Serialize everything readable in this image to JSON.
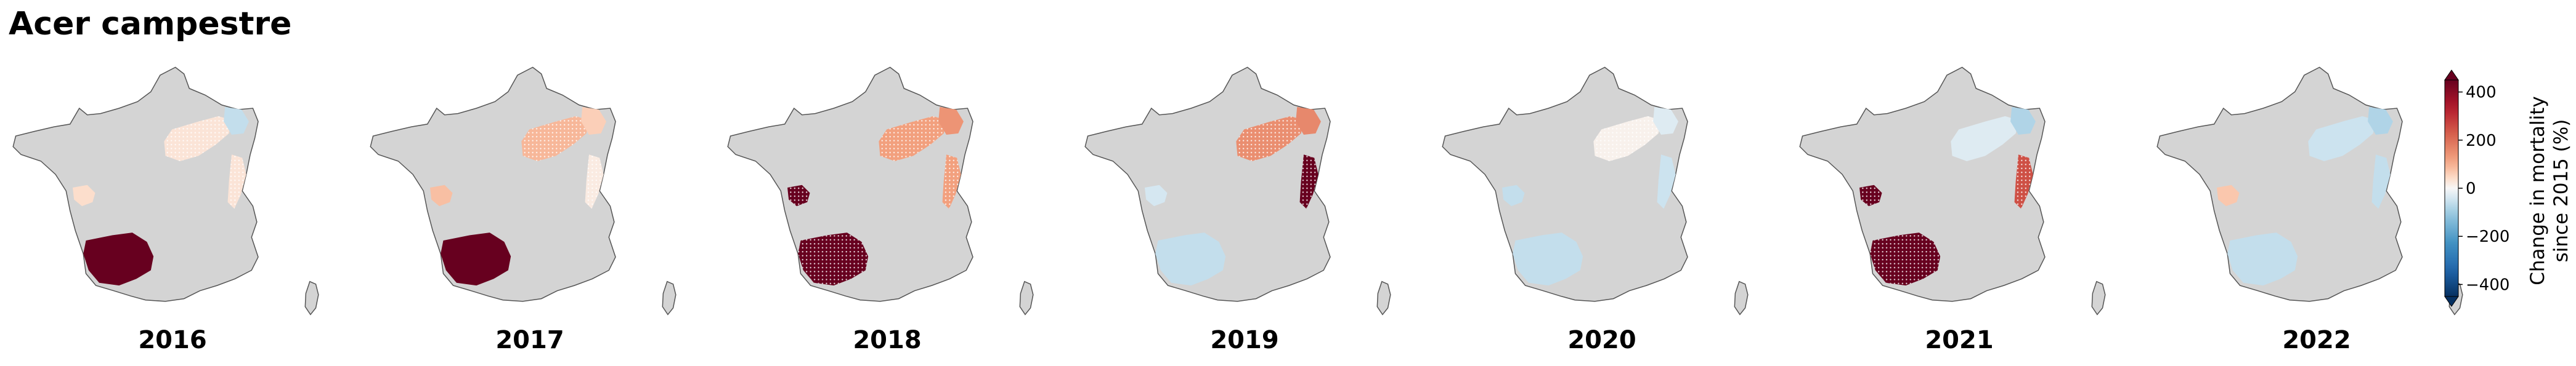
{
  "title": "Acer campestre",
  "map_style": {
    "land": "#d4d4d4",
    "outline": "#555555",
    "hatch": "#ffffff"
  },
  "panels": [
    {
      "year": "2016",
      "regions": [
        {
          "area": "southwest-landes",
          "change": 460,
          "hatch": false
        },
        {
          "area": "charente-coast",
          "change": 40,
          "hatch": false
        },
        {
          "area": "northeast-plateau",
          "change": 30,
          "hatch": true
        },
        {
          "area": "lorraine",
          "change": -60,
          "hatch": false
        },
        {
          "area": "alps-jura",
          "change": 30,
          "hatch": true
        },
        {
          "area": "central-band",
          "change": 0,
          "hatch": false
        }
      ]
    },
    {
      "year": "2017",
      "regions": [
        {
          "area": "southwest-landes",
          "change": 460,
          "hatch": false
        },
        {
          "area": "charente-coast",
          "change": 80,
          "hatch": false
        },
        {
          "area": "northeast-plateau",
          "change": 90,
          "hatch": true
        },
        {
          "area": "lorraine",
          "change": 60,
          "hatch": false
        },
        {
          "area": "alps-jura",
          "change": 20,
          "hatch": true
        },
        {
          "area": "central-band",
          "change": 0,
          "hatch": false
        }
      ]
    },
    {
      "year": "2018",
      "regions": [
        {
          "area": "southwest-landes",
          "change": 460,
          "hatch": true
        },
        {
          "area": "charente-coast",
          "change": 460,
          "hatch": true
        },
        {
          "area": "northeast-plateau",
          "change": 120,
          "hatch": true
        },
        {
          "area": "lorraine",
          "change": 140,
          "hatch": false
        },
        {
          "area": "alps-jura",
          "change": 120,
          "hatch": true
        },
        {
          "area": "central-band",
          "change": 0,
          "hatch": false
        }
      ]
    },
    {
      "year": "2019",
      "regions": [
        {
          "area": "southwest-landes",
          "change": -60,
          "hatch": false
        },
        {
          "area": "charente-coast",
          "change": -40,
          "hatch": false
        },
        {
          "area": "northeast-plateau",
          "change": 150,
          "hatch": true
        },
        {
          "area": "lorraine",
          "change": 160,
          "hatch": false
        },
        {
          "area": "alps-jura",
          "change": 460,
          "hatch": true
        },
        {
          "area": "central-band",
          "change": 0,
          "hatch": false
        }
      ]
    },
    {
      "year": "2020",
      "regions": [
        {
          "area": "southwest-landes",
          "change": -60,
          "hatch": false
        },
        {
          "area": "charente-coast",
          "change": -60,
          "hatch": false
        },
        {
          "area": "northeast-plateau",
          "change": 10,
          "hatch": true
        },
        {
          "area": "lorraine",
          "change": -30,
          "hatch": false
        },
        {
          "area": "alps-jura",
          "change": -50,
          "hatch": false
        },
        {
          "area": "central-band",
          "change": 0,
          "hatch": false
        }
      ]
    },
    {
      "year": "2021",
      "regions": [
        {
          "area": "southwest-landes",
          "change": 460,
          "hatch": true
        },
        {
          "area": "charente-coast",
          "change": 460,
          "hatch": true
        },
        {
          "area": "northeast-plateau",
          "change": -30,
          "hatch": false
        },
        {
          "area": "lorraine",
          "change": -80,
          "hatch": false
        },
        {
          "area": "alps-jura",
          "change": 250,
          "hatch": true
        },
        {
          "area": "central-band",
          "change": 0,
          "hatch": false
        }
      ]
    },
    {
      "year": "2022",
      "regions": [
        {
          "area": "southwest-landes",
          "change": -60,
          "hatch": false
        },
        {
          "area": "charente-coast",
          "change": 70,
          "hatch": false
        },
        {
          "area": "northeast-plateau",
          "change": -50,
          "hatch": false
        },
        {
          "area": "lorraine",
          "change": -80,
          "hatch": false
        },
        {
          "area": "alps-jura",
          "change": -60,
          "hatch": false
        },
        {
          "area": "central-band",
          "change": 0,
          "hatch": false
        }
      ]
    }
  ],
  "colorbar": {
    "label_line1": "Change in mortality",
    "label_line2": "since 2015 (%)",
    "min": -450,
    "max": 450,
    "ticks": [
      {
        "value": 400,
        "label": "400"
      },
      {
        "value": 200,
        "label": "200"
      },
      {
        "value": 0,
        "label": "0"
      },
      {
        "value": -200,
        "label": "−200"
      },
      {
        "value": -400,
        "label": "−400"
      }
    ],
    "extend": "both",
    "colormap": "RdBu_r"
  }
}
